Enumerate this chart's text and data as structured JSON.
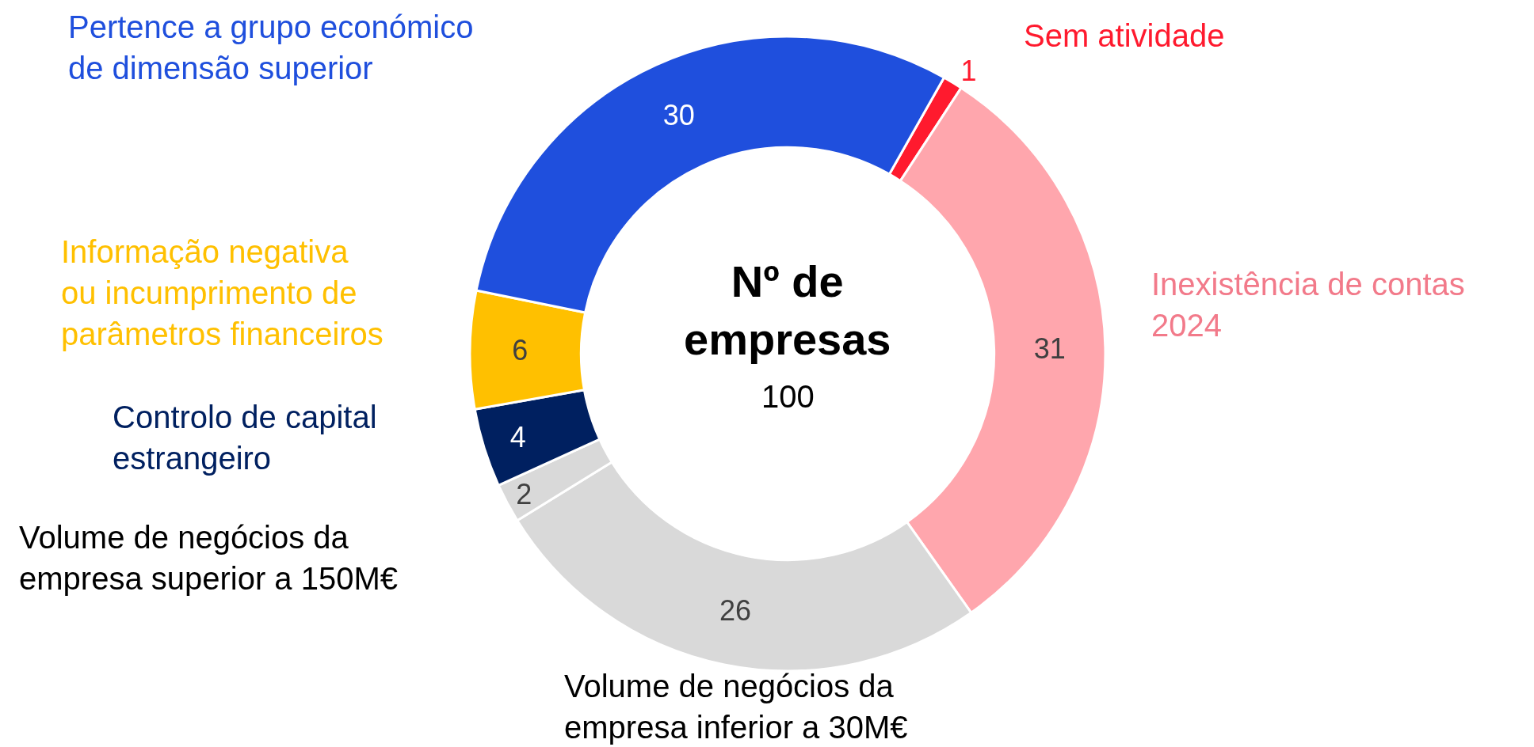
{
  "chart_data": {
    "type": "donut",
    "title": "Nº de empresas",
    "annotations": [
      "100"
    ],
    "categories": [
      "Sem atividade",
      "Inexistência de contas\n2024",
      "Volume de negócios da\nempresa inferior a 30M€",
      "Volume de negócios da\nempresa superior a 150M€",
      "Controlo de capital\nestrangeiro",
      "Informação negativa\nou incumprimento de\nparâmetros financeiros",
      "Pertence a grupo económico\nde dimensão superior"
    ],
    "values": [
      1,
      31,
      26,
      2,
      4,
      6,
      30
    ],
    "colors": [
      "#ff1a2e",
      "#ffa6ad",
      "#d9d9d9",
      "#d9d9d9",
      "#002060",
      "#ffc000",
      "#1f4fdd"
    ],
    "data_labels": true,
    "legend": false
  }
}
